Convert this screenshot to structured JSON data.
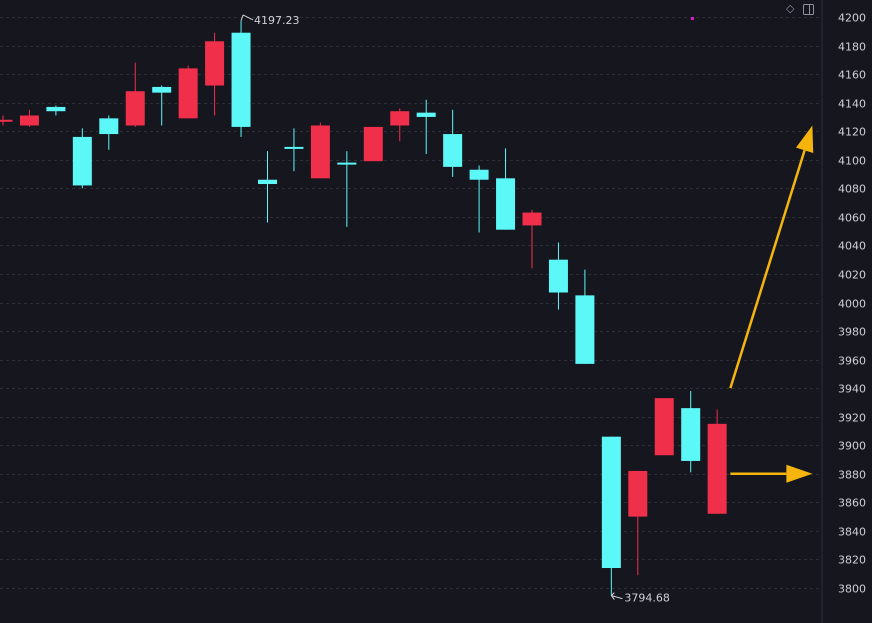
{
  "chart_data": {
    "type": "candlestick",
    "title": "",
    "xlabel": "",
    "ylabel": "",
    "ylim": [
      3788,
      4208
    ],
    "y_ticks": [
      4200,
      4180,
      4160,
      4140,
      4120,
      4100,
      4080,
      4060,
      4040,
      4020,
      4000,
      3980,
      3960,
      3940,
      3920,
      3900,
      3880,
      3860,
      3840,
      3820,
      3800
    ],
    "grid": true,
    "candles": [
      {
        "open": 4128,
        "close": 4128,
        "high": 4131,
        "low": 4124
      },
      {
        "open": 4124,
        "close": 4131,
        "high": 4135,
        "low": 4123
      },
      {
        "open": 4137,
        "close": 4134,
        "high": 4138,
        "low": 4131
      },
      {
        "open": 4116,
        "close": 4082,
        "high": 4122,
        "low": 4080
      },
      {
        "open": 4129,
        "close": 4118,
        "high": 4131,
        "low": 4107
      },
      {
        "open": 4124,
        "close": 4148,
        "high": 4168,
        "low": 4123
      },
      {
        "open": 4151,
        "close": 4147,
        "high": 4152,
        "low": 4124
      },
      {
        "open": 4129,
        "close": 4164,
        "high": 4166,
        "low": 4129
      },
      {
        "open": 4152,
        "close": 4183,
        "high": 4189,
        "low": 4131
      },
      {
        "open": 4189,
        "close": 4123,
        "high": 4197.23,
        "low": 4116
      },
      {
        "open": 4086,
        "close": 4083,
        "high": 4106,
        "low": 4056
      },
      {
        "open": 4109,
        "close": 4108,
        "high": 4122,
        "low": 4092
      },
      {
        "open": 4087,
        "close": 4124,
        "high": 4126,
        "low": 4087
      },
      {
        "open": 4098,
        "close": 4097,
        "high": 4106,
        "low": 4053
      },
      {
        "open": 4099,
        "close": 4123,
        "high": 4123,
        "low": 4099
      },
      {
        "open": 4124,
        "close": 4134,
        "high": 4136,
        "low": 4113
      },
      {
        "open": 4133,
        "close": 4130,
        "high": 4142,
        "low": 4104
      },
      {
        "open": 4118,
        "close": 4095,
        "high": 4135,
        "low": 4088
      },
      {
        "open": 4093,
        "close": 4086,
        "high": 4096,
        "low": 4049
      },
      {
        "open": 4087,
        "close": 4051,
        "high": 4108,
        "low": 4051
      },
      {
        "open": 4054,
        "close": 4063,
        "high": 4065,
        "low": 4024
      },
      {
        "open": 4030,
        "close": 4007,
        "high": 4042,
        "low": 3995
      },
      {
        "open": 4005,
        "close": 3957,
        "high": 4023,
        "low": 3957
      },
      {
        "open": 3906,
        "close": 3814,
        "high": 3906,
        "low": 3794.68
      },
      {
        "open": 3850,
        "close": 3882,
        "high": 3882,
        "low": 3809
      },
      {
        "open": 3893,
        "close": 3933,
        "high": 3933,
        "low": 3893
      },
      {
        "open": 3926,
        "close": 3889,
        "high": 3938,
        "low": 3881
      },
      {
        "open": 3852,
        "close": 3915,
        "high": 3925,
        "low": 3852
      }
    ],
    "annotations": {
      "high_label": "4197.23",
      "low_label": "3794.68"
    },
    "arrows": [
      {
        "from": [
          27.5,
          3940
        ],
        "to": [
          30.6,
          4124
        ]
      },
      {
        "from": [
          27.5,
          3880
        ],
        "to": [
          30.6,
          3880
        ]
      }
    ],
    "colors": {
      "background": "#16161f",
      "grid": "#2d2e38",
      "up": "#f0304a",
      "down": "#5cf7f7",
      "arrow": "#f5b50c",
      "text": "#cfd0d6",
      "marker": "#d81ec8"
    }
  }
}
